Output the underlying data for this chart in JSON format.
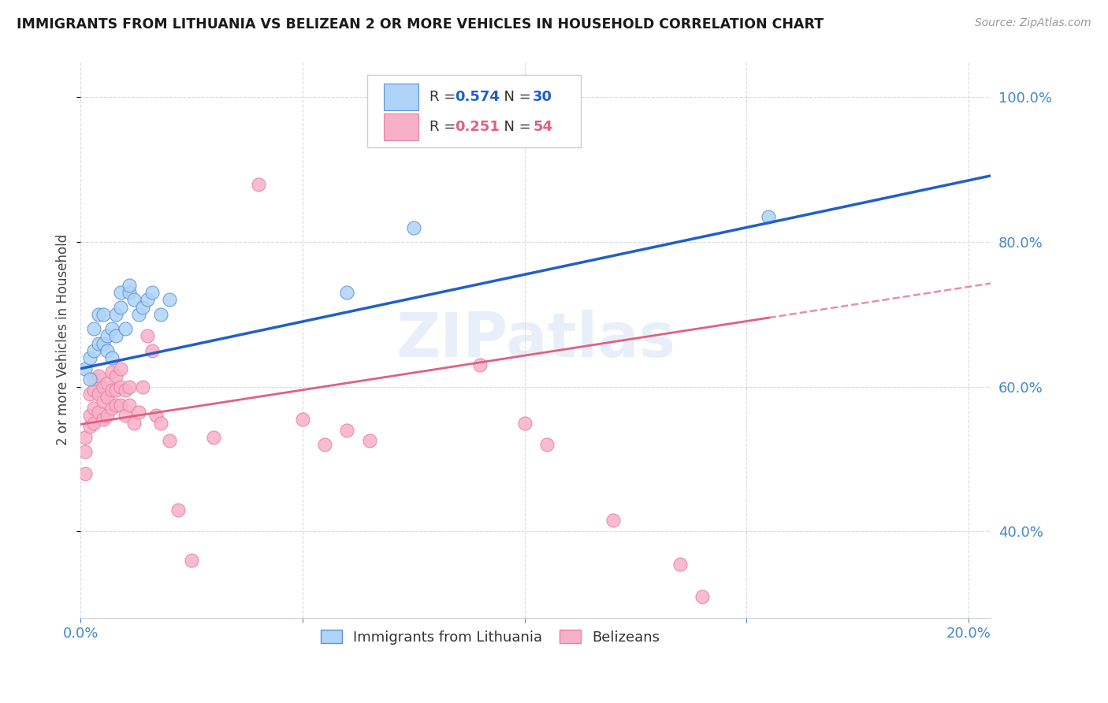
{
  "title": "IMMIGRANTS FROM LITHUANIA VS BELIZEAN 2 OR MORE VEHICLES IN HOUSEHOLD CORRELATION CHART",
  "source_text": "Source: ZipAtlas.com",
  "ylabel": "2 or more Vehicles in Household",
  "right_yticks": [
    0.4,
    0.6,
    0.8,
    1.0
  ],
  "right_yticklabels": [
    "40.0%",
    "60.0%",
    "80.0%",
    "100.0%"
  ],
  "xtick_vals": [
    0.0,
    0.05,
    0.1,
    0.15,
    0.2
  ],
  "xtick_labels": [
    "0.0%",
    "",
    "",
    "",
    "20.0%"
  ],
  "xlim": [
    0.0,
    0.205
  ],
  "ylim": [
    0.28,
    1.05
  ],
  "watermark": "ZIPatlas",
  "blue_R": "0.574",
  "blue_N": "30",
  "pink_R": "0.251",
  "pink_N": "54",
  "blue_scatter_x": [
    0.001,
    0.002,
    0.002,
    0.003,
    0.003,
    0.004,
    0.004,
    0.005,
    0.005,
    0.006,
    0.006,
    0.007,
    0.007,
    0.008,
    0.008,
    0.009,
    0.009,
    0.01,
    0.011,
    0.011,
    0.012,
    0.013,
    0.014,
    0.015,
    0.016,
    0.018,
    0.02,
    0.06,
    0.075,
    0.155
  ],
  "blue_scatter_y": [
    0.625,
    0.61,
    0.64,
    0.68,
    0.65,
    0.7,
    0.66,
    0.66,
    0.7,
    0.65,
    0.67,
    0.64,
    0.68,
    0.67,
    0.7,
    0.71,
    0.73,
    0.68,
    0.73,
    0.74,
    0.72,
    0.7,
    0.71,
    0.72,
    0.73,
    0.7,
    0.72,
    0.73,
    0.82,
    0.835
  ],
  "pink_scatter_x": [
    0.001,
    0.001,
    0.001,
    0.002,
    0.002,
    0.002,
    0.003,
    0.003,
    0.003,
    0.003,
    0.004,
    0.004,
    0.004,
    0.005,
    0.005,
    0.005,
    0.006,
    0.006,
    0.006,
    0.007,
    0.007,
    0.007,
    0.008,
    0.008,
    0.008,
    0.009,
    0.009,
    0.009,
    0.01,
    0.01,
    0.011,
    0.011,
    0.012,
    0.013,
    0.014,
    0.015,
    0.016,
    0.017,
    0.018,
    0.02,
    0.022,
    0.025,
    0.03,
    0.04,
    0.05,
    0.055,
    0.06,
    0.065,
    0.09,
    0.1,
    0.105,
    0.12,
    0.135,
    0.14
  ],
  "pink_scatter_y": [
    0.48,
    0.51,
    0.53,
    0.545,
    0.56,
    0.59,
    0.55,
    0.57,
    0.595,
    0.61,
    0.565,
    0.59,
    0.615,
    0.555,
    0.58,
    0.6,
    0.56,
    0.585,
    0.605,
    0.57,
    0.595,
    0.62,
    0.575,
    0.595,
    0.615,
    0.575,
    0.6,
    0.625,
    0.56,
    0.595,
    0.575,
    0.6,
    0.55,
    0.565,
    0.6,
    0.67,
    0.65,
    0.56,
    0.55,
    0.525,
    0.43,
    0.36,
    0.53,
    0.88,
    0.555,
    0.52,
    0.54,
    0.525,
    0.63,
    0.55,
    0.52,
    0.415,
    0.355,
    0.31
  ],
  "blue_line_color": "#2060c8",
  "pink_line_color": "#e06080",
  "scatter_blue_color": "#aed4f8",
  "scatter_pink_color": "#f8b0c8",
  "scatter_blue_edge": "#6090d8",
  "scatter_pink_edge": "#e880a0",
  "axis_color": "#4488cc",
  "grid_color": "#d8d8e8",
  "background_color": "#ffffff",
  "title_color": "#1a1a1a"
}
